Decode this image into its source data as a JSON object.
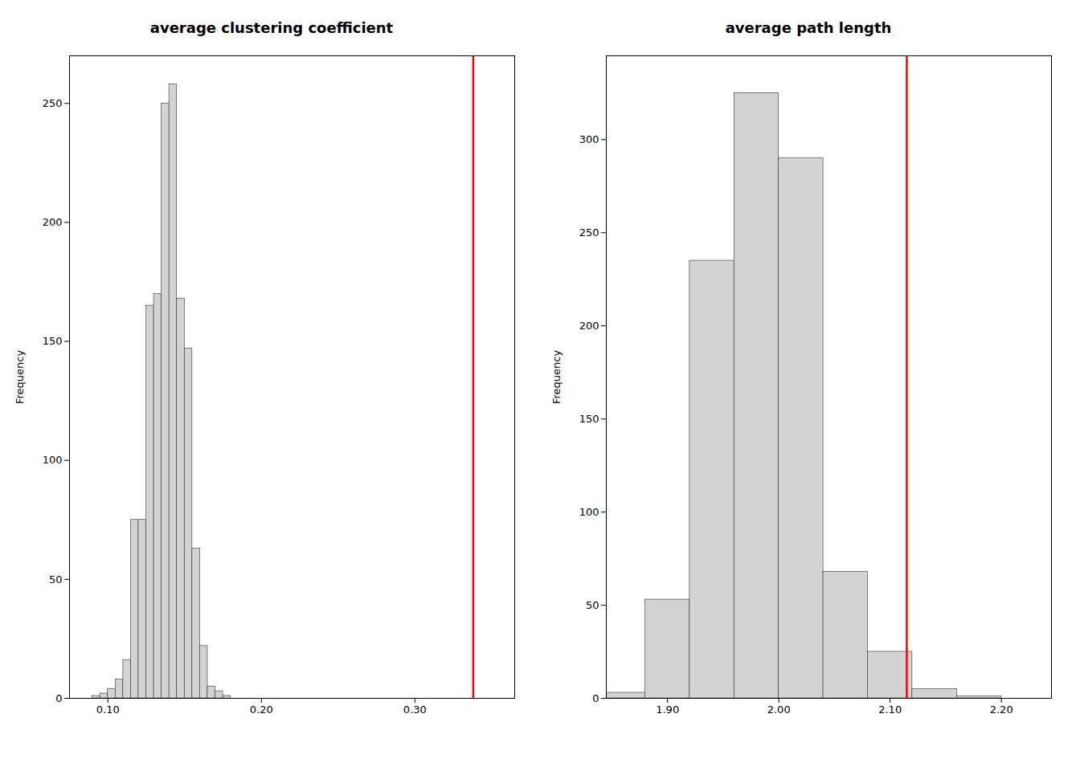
{
  "chart_data": [
    {
      "type": "histogram",
      "title": "average clustering coefficient",
      "ylabel": "Frequency",
      "bins": [
        0.09,
        0.095,
        0.1,
        0.105,
        0.11,
        0.115,
        0.12,
        0.125,
        0.13,
        0.135,
        0.14,
        0.145,
        0.15,
        0.155,
        0.16,
        0.165,
        0.17,
        0.175,
        0.18,
        0.185
      ],
      "values": [
        1,
        2,
        4,
        8,
        16,
        75,
        75,
        165,
        170,
        250,
        258,
        168,
        147,
        63,
        22,
        5,
        3,
        1,
        0
      ],
      "color": "#d3d3d3",
      "xlim": [
        0.075,
        0.365
      ],
      "xticks": [
        {
          "value": 0.1,
          "label": "0.10"
        },
        {
          "value": 0.2,
          "label": "0.20"
        },
        {
          "value": 0.3,
          "label": "0.30"
        }
      ],
      "ylim": [
        0,
        270
      ],
      "yticks": [
        0,
        50,
        100,
        150,
        200,
        250
      ],
      "reference_line": {
        "x": 0.338,
        "color": "#ff0000"
      },
      "grid": false
    },
    {
      "type": "histogram",
      "title": "average path length",
      "ylabel": "Frequency",
      "bins": [
        1.845,
        1.88,
        1.92,
        1.96,
        2.0,
        2.04,
        2.08,
        2.12,
        2.16,
        2.2
      ],
      "values": [
        3,
        53,
        235,
        325,
        290,
        68,
        25,
        5,
        1
      ],
      "color": "#d3d3d3",
      "xlim": [
        1.845,
        2.245
      ],
      "xticks": [
        {
          "value": 1.9,
          "label": "1.90"
        },
        {
          "value": 2.0,
          "label": "2.00"
        },
        {
          "value": 2.1,
          "label": "2.10"
        },
        {
          "value": 2.2,
          "label": "2.20"
        }
      ],
      "ylim": [
        0,
        345
      ],
      "yticks": [
        0,
        50,
        100,
        150,
        200,
        250,
        300
      ],
      "reference_line": {
        "x": 2.115,
        "color": "#ff0000"
      },
      "grid": false
    }
  ]
}
